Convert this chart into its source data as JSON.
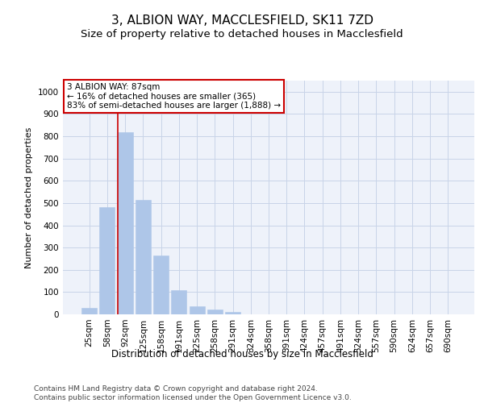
{
  "title1": "3, ALBION WAY, MACCLESFIELD, SK11 7ZD",
  "title2": "Size of property relative to detached houses in Macclesfield",
  "xlabel": "Distribution of detached houses by size in Macclesfield",
  "ylabel": "Number of detached properties",
  "categories": [
    "25sqm",
    "58sqm",
    "92sqm",
    "125sqm",
    "158sqm",
    "191sqm",
    "225sqm",
    "258sqm",
    "291sqm",
    "324sqm",
    "358sqm",
    "391sqm",
    "424sqm",
    "457sqm",
    "491sqm",
    "524sqm",
    "557sqm",
    "590sqm",
    "624sqm",
    "657sqm",
    "690sqm"
  ],
  "values": [
    30,
    480,
    820,
    515,
    265,
    110,
    35,
    22,
    10,
    0,
    0,
    0,
    0,
    0,
    0,
    0,
    0,
    0,
    0,
    0,
    0
  ],
  "bar_color": "#aec6e8",
  "bar_edge_color": "#aec6e8",
  "vline_index": 2,
  "vline_color": "#cc0000",
  "annotation_text": "3 ALBION WAY: 87sqm\n← 16% of detached houses are smaller (365)\n83% of semi-detached houses are larger (1,888) →",
  "annotation_box_color": "#ffffff",
  "annotation_box_edge_color": "#cc0000",
  "ylim": [
    0,
    1050
  ],
  "yticks": [
    0,
    100,
    200,
    300,
    400,
    500,
    600,
    700,
    800,
    900,
    1000
  ],
  "grid_color": "#c8d4e8",
  "background_color": "#eef2fa",
  "footnote": "Contains HM Land Registry data © Crown copyright and database right 2024.\nContains public sector information licensed under the Open Government Licence v3.0.",
  "title1_fontsize": 11,
  "title2_fontsize": 9.5,
  "xlabel_fontsize": 8.5,
  "ylabel_fontsize": 8,
  "tick_fontsize": 7.5,
  "annot_fontsize": 7.5,
  "footnote_fontsize": 6.5
}
